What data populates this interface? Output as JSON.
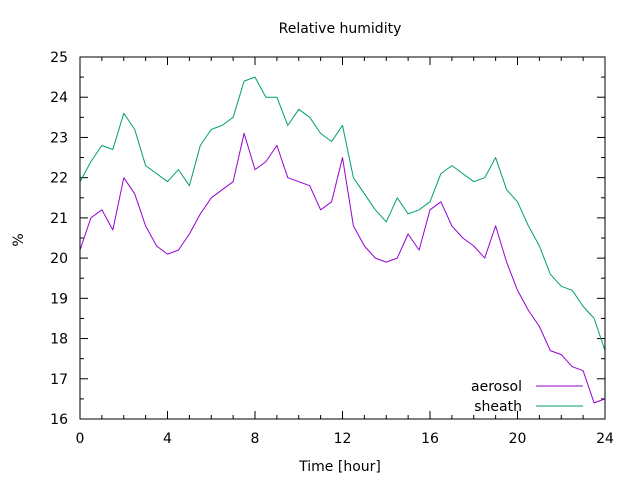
{
  "chart_data": {
    "type": "line",
    "title": "Relative humidity",
    "xlabel": "Time [hour]",
    "ylabel": "%",
    "xlim": [
      0,
      24
    ],
    "ylim": [
      16,
      25
    ],
    "xticks": [
      0,
      4,
      8,
      12,
      16,
      20,
      24
    ],
    "yticks": [
      16,
      17,
      18,
      19,
      20,
      21,
      22,
      23,
      24,
      25
    ],
    "grid": false,
    "legend_position": "bottom-right",
    "series": [
      {
        "name": "aerosol",
        "color": "#9400d3",
        "x": [
          0,
          0.5,
          1,
          1.5,
          2,
          2.5,
          3,
          3.5,
          4,
          4.5,
          5,
          5.5,
          6,
          6.5,
          7,
          7.5,
          8,
          8.5,
          9,
          9.5,
          10,
          10.5,
          11,
          11.5,
          12,
          12.5,
          13,
          13.5,
          14,
          14.5,
          15,
          15.5,
          16,
          16.5,
          17,
          17.5,
          18,
          18.5,
          19,
          19.5,
          20,
          20.5,
          21,
          21.5,
          22,
          22.5,
          23,
          23.5,
          24
        ],
        "y": [
          20.2,
          21.0,
          21.2,
          20.7,
          22.0,
          21.6,
          20.8,
          20.3,
          20.1,
          20.2,
          20.6,
          21.1,
          21.5,
          21.7,
          21.9,
          23.1,
          22.2,
          22.4,
          22.8,
          22.0,
          21.9,
          21.8,
          21.2,
          21.4,
          22.5,
          20.8,
          20.3,
          20.0,
          19.9,
          20.0,
          20.6,
          20.2,
          21.2,
          21.4,
          20.8,
          20.5,
          20.3,
          20.0,
          20.8,
          19.9,
          19.2,
          18.7,
          18.3,
          17.7,
          17.6,
          17.3,
          17.2,
          16.4,
          16.5
        ]
      },
      {
        "name": "sheath",
        "color": "#009e73",
        "x": [
          0,
          0.5,
          1,
          1.5,
          2,
          2.5,
          3,
          3.5,
          4,
          4.5,
          5,
          5.5,
          6,
          6.5,
          7,
          7.5,
          8,
          8.5,
          9,
          9.5,
          10,
          10.5,
          11,
          11.5,
          12,
          12.5,
          13,
          13.5,
          14,
          14.5,
          15,
          15.5,
          16,
          16.5,
          17,
          17.5,
          18,
          18.5,
          19,
          19.5,
          20,
          20.5,
          21,
          21.5,
          22,
          22.5,
          23,
          23.5,
          24
        ],
        "y": [
          21.9,
          22.4,
          22.8,
          22.7,
          23.6,
          23.2,
          22.3,
          22.1,
          21.9,
          22.2,
          21.8,
          22.8,
          23.2,
          23.3,
          23.5,
          24.4,
          24.5,
          24.0,
          24.0,
          23.3,
          23.7,
          23.5,
          23.1,
          22.9,
          23.3,
          22.0,
          21.6,
          21.2,
          20.9,
          21.5,
          21.1,
          21.2,
          21.4,
          22.1,
          22.3,
          22.1,
          21.9,
          22.0,
          22.5,
          21.7,
          21.4,
          20.8,
          20.3,
          19.6,
          19.3,
          19.2,
          18.8,
          18.5,
          17.7
        ]
      }
    ]
  }
}
